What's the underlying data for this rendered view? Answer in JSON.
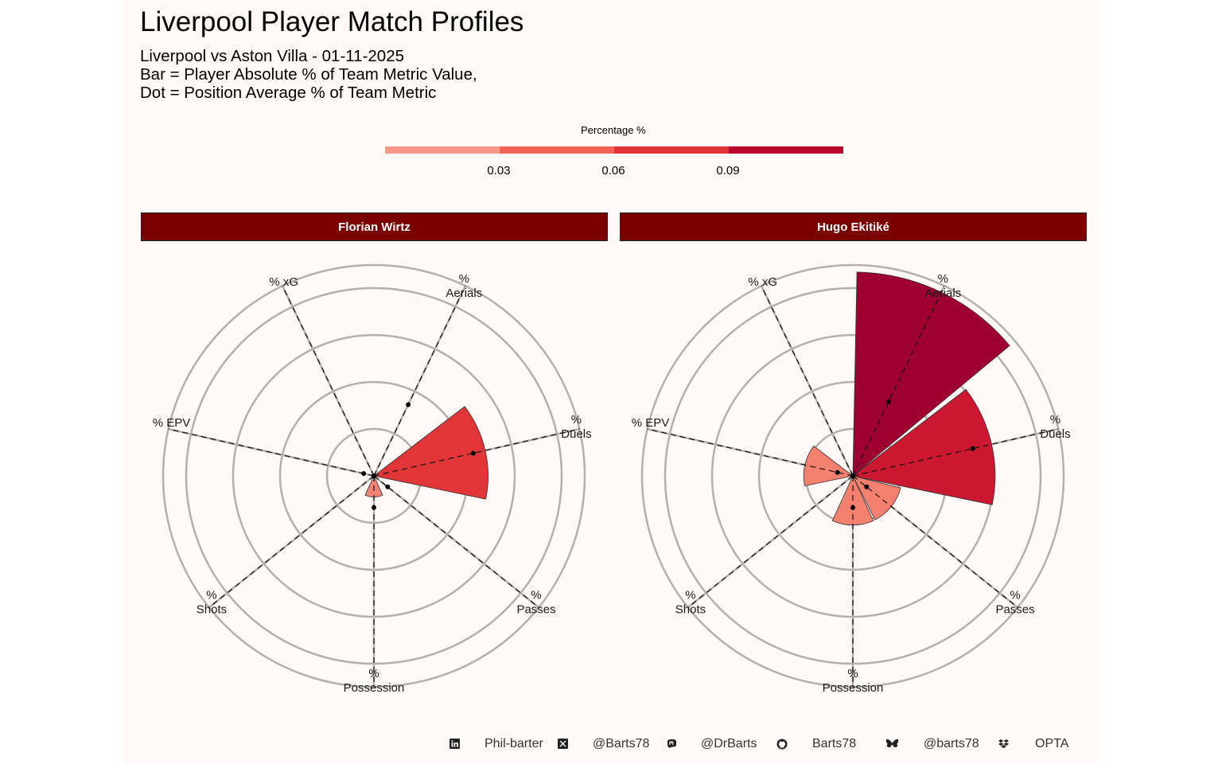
{
  "title": "Liverpool Player Match Profiles",
  "subtitle": {
    "line1": "Liverpool vs Aston Villa - 01-11-2025",
    "line2": "Bar = Player Absolute % of Team Metric Value,",
    "line3": "Dot = Position Average % of Team Metric"
  },
  "legend": {
    "title": "Percentage %",
    "ticks": [
      "0.03",
      "0.06",
      "0.09"
    ],
    "colors": [
      "#f7978a",
      "#ef6552",
      "#e23237",
      "#b8072b"
    ]
  },
  "chart_data": [
    {
      "type": "polar-bar",
      "player": "Florian Wirtz",
      "categories": [
        "% xG",
        "%\nAerials",
        "%\nDuels",
        "%\nPasses",
        "%\nPossession",
        "%\nShots",
        "% EPV"
      ],
      "bar_values": [
        0.0,
        0.0,
        0.065,
        0.0,
        0.012,
        0.0,
        0.0
      ],
      "bar_colors": [
        "#f7978a",
        "#f7978a",
        "#e13538",
        "#f7978a",
        "#f48275",
        "#f7978a",
        "#f7978a"
      ],
      "dot_values": [
        0.0,
        0.045,
        0.058,
        0.01,
        0.018,
        0.0,
        0.006
      ],
      "rlim": [
        0,
        0.12
      ],
      "grid": true
    },
    {
      "type": "polar-bar",
      "player": "Hugo Ekitiké",
      "categories": [
        "% xG",
        "%\nAerials",
        "%\nDuels",
        "%\nPasses",
        "%\nPossession",
        "%\nShots",
        "% EPV"
      ],
      "bar_values": [
        0.0,
        0.116,
        0.081,
        0.028,
        0.028,
        0.0,
        0.028
      ],
      "bar_colors": [
        "#f7978a",
        "#9e0030",
        "#cb1830",
        "#f4806f",
        "#f4806f",
        "#f7978a",
        "#f4806f"
      ],
      "dot_values": [
        0.0,
        0.047,
        0.07,
        0.01,
        0.018,
        0.0,
        0.009
      ],
      "rlim": [
        0,
        0.12
      ],
      "grid": true
    }
  ],
  "footer": [
    {
      "icon": "linkedin-icon",
      "text": "Phil-barter"
    },
    {
      "icon": "x-twitter-icon",
      "text": "@Barts78"
    },
    {
      "icon": "mastodon-icon",
      "text": "@DrBarts"
    },
    {
      "icon": "github-icon",
      "text": "Barts78"
    },
    {
      "icon": "bluesky-icon",
      "text": "@barts78"
    },
    {
      "icon": "dropbox-icon",
      "text": "OPTA"
    }
  ]
}
